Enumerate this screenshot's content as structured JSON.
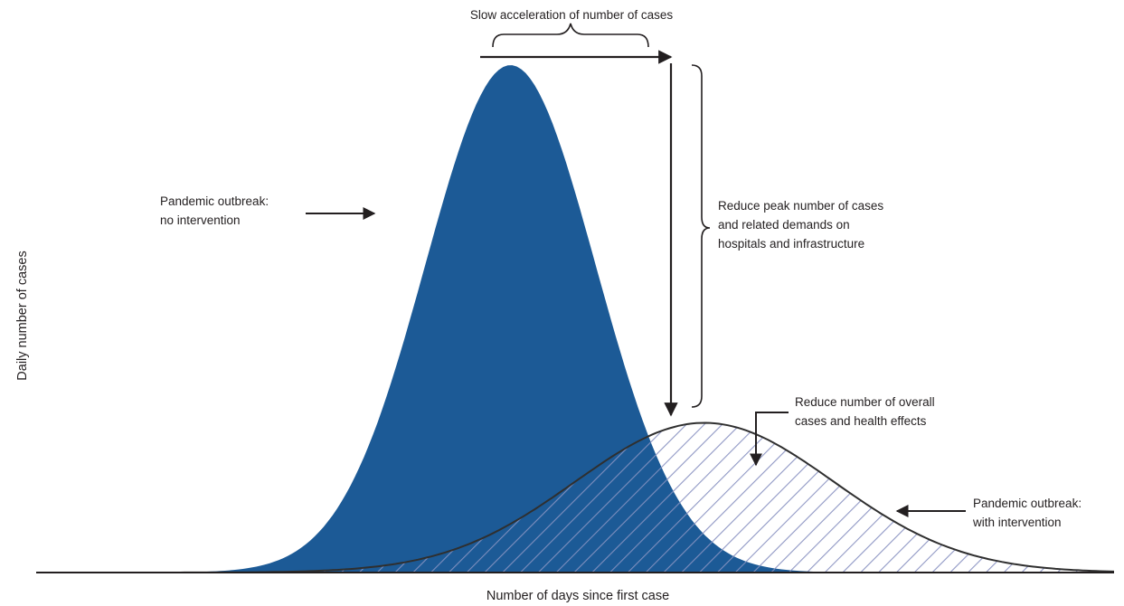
{
  "colors": {
    "no_intervention_fill": "#1c5a96",
    "hatch_line": "#8f97c4",
    "curve_stroke": "#2f2f2f",
    "annotation": "#231f20"
  },
  "axes": {
    "x_label": "Number of days since first case",
    "y_label": "Daily number of cases"
  },
  "annotations": {
    "slow_acceleration": "Slow acceleration of number of cases",
    "no_intervention": [
      "Pandemic outbreak:",
      "no intervention"
    ],
    "reduce_peak": [
      "Reduce peak number of cases",
      "and related demands on",
      "hospitals and infrastructure"
    ],
    "reduce_overall": [
      "Reduce number of overall",
      "cases and health effects"
    ],
    "with_intervention": [
      "Pandemic outbreak:",
      "with intervention"
    ]
  },
  "curves": [
    {
      "id": "no-intervention",
      "style": "solid-fill",
      "relative_peak": 1.0,
      "relative_peak_day": 0.44,
      "relative_spread": 0.079
    },
    {
      "id": "with-intervention",
      "style": "hatched-outline",
      "relative_peak": 0.295,
      "relative_peak_day": 0.62,
      "relative_spread": 0.12
    }
  ]
}
